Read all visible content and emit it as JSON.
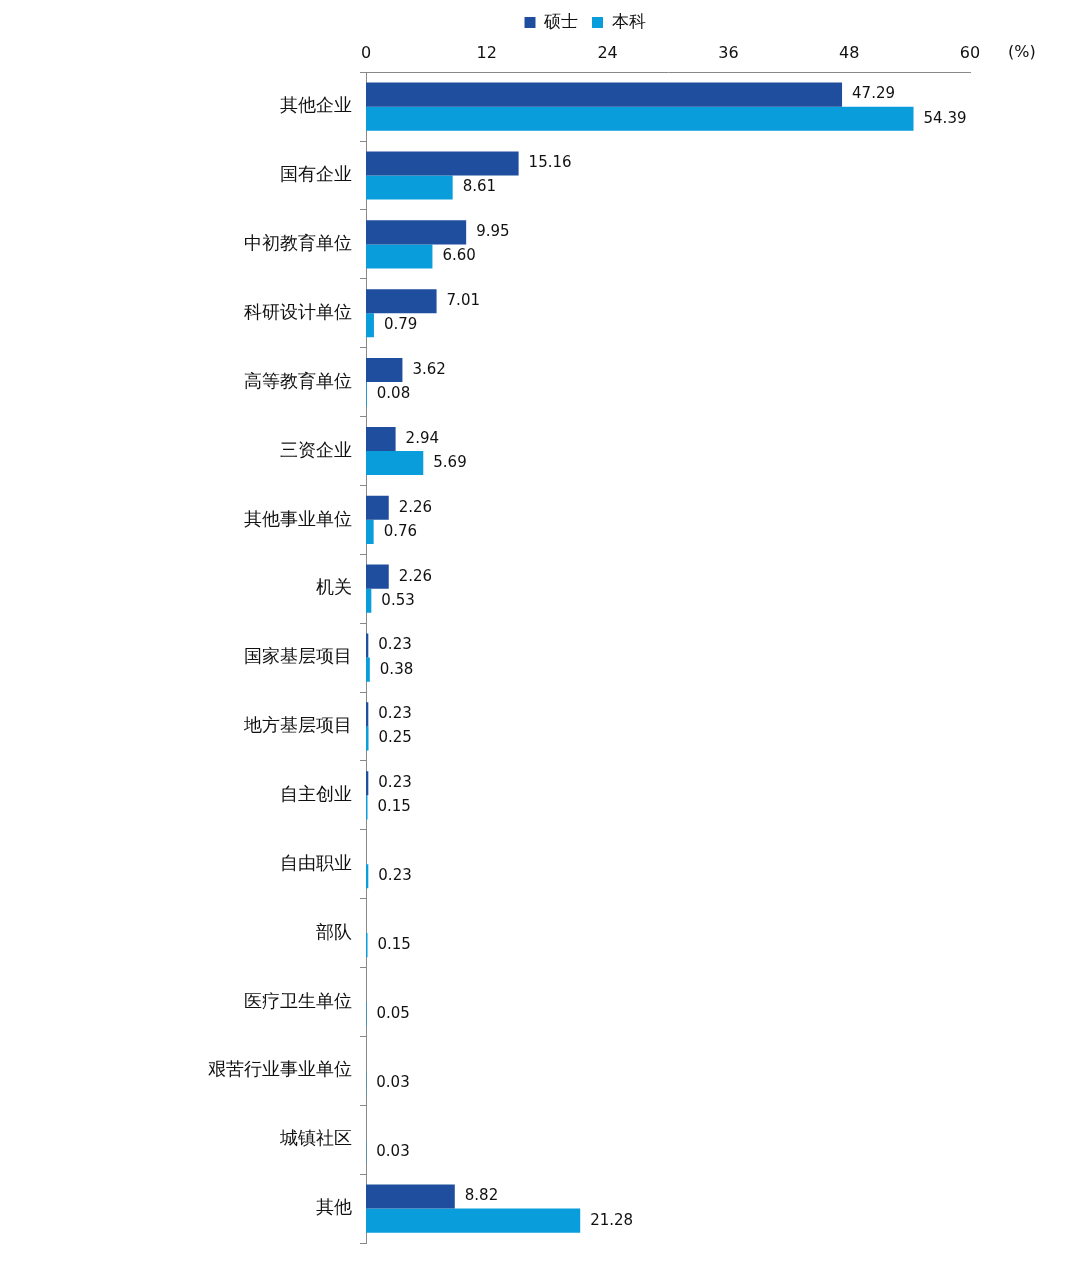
{
  "chart_data": {
    "type": "bar",
    "orientation": "horizontal",
    "categories": [
      "其他企业",
      "国有企业",
      "中初教育单位",
      "科研设计单位",
      "高等教育单位",
      "三资企业",
      "其他事业单位",
      "机关",
      "国家基层项目",
      "地方基层项目",
      "自主创业",
      "自由职业",
      "部队",
      "医疗卫生单位",
      "艰苦行业事业单位",
      "城镇社区",
      "其他"
    ],
    "series": [
      {
        "name": "硕士",
        "color": "#1f4e9e",
        "values": [
          47.29,
          15.16,
          9.95,
          7.01,
          3.62,
          2.94,
          2.26,
          2.26,
          0.23,
          0.23,
          0.23,
          null,
          null,
          null,
          null,
          null,
          8.82
        ],
        "value_labels": [
          "47.29",
          "15.16",
          "9.95",
          "7.01",
          "3.62",
          "2.94",
          "2.26",
          "2.26",
          "0.23",
          "0.23",
          "0.23",
          null,
          null,
          null,
          null,
          null,
          "8.82"
        ]
      },
      {
        "name": "本科",
        "color": "#0a9ddc",
        "values": [
          54.39,
          8.61,
          6.6,
          0.79,
          0.08,
          5.69,
          0.76,
          0.53,
          0.38,
          0.25,
          0.15,
          0.23,
          0.15,
          0.05,
          0.03,
          0.03,
          21.28
        ],
        "value_labels": [
          "54.39",
          "8.61",
          "6.60",
          "0.79",
          "0.08",
          "5.69",
          "0.76",
          "0.53",
          "0.38",
          "0.25",
          "0.15",
          "0.23",
          "0.15",
          "0.05",
          "0.03",
          "0.03",
          "21.28"
        ]
      }
    ],
    "x_label": "(%)",
    "xlim": [
      0,
      60
    ],
    "xticks": [
      0,
      12,
      24,
      36,
      48,
      60
    ],
    "grid": false,
    "legend": "top",
    "data_labels": true
  }
}
